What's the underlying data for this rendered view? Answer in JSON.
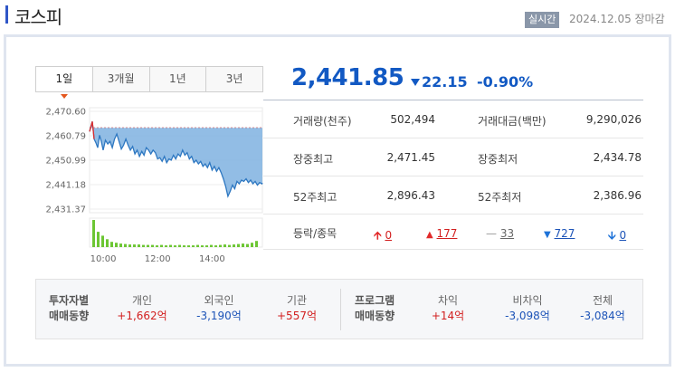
{
  "header": {
    "title": "코스피",
    "badge": "실시간",
    "datetime": "2024.12.05 장마감"
  },
  "tabs": [
    {
      "label": "1일",
      "selected": true
    },
    {
      "label": "3개월",
      "selected": false
    },
    {
      "label": "1년",
      "selected": false
    },
    {
      "label": "3년",
      "selected": false
    }
  ],
  "price": {
    "current": "2,441.85",
    "change": "22.15",
    "change_rate": "-0.90%",
    "direction": "down",
    "color": "#1259c3"
  },
  "stats": {
    "volume_label": "거래량(천주)",
    "volume_value": "502,494",
    "amount_label": "거래대금(백만)",
    "amount_value": "9,290,026",
    "high_label": "장중최고",
    "high_value": "2,471.45",
    "low_label": "장중최저",
    "low_value": "2,434.78",
    "high52_label": "52주최고",
    "high52_value": "2,896.43",
    "low52_label": "52주최저",
    "low52_value": "2,386.96",
    "breadth_label": "등락/종목",
    "upper_limit": "0",
    "rise": "177",
    "unchanged": "33",
    "fall": "727",
    "lower_limit": "0"
  },
  "investor": {
    "group1_line1": "투자자별",
    "group1_line2": "매매동향",
    "individual_label": "개인",
    "individual_value": "+1,662억",
    "foreign_label": "외국인",
    "foreign_value": "-3,190억",
    "institution_label": "기관",
    "institution_value": "+557억",
    "group2_line1": "프로그램",
    "group2_line2": "매매동향",
    "arbitrage_label": "차익",
    "arbitrage_value": "+14억",
    "nonarbitrage_label": "비차익",
    "nonarbitrage_value": "-3,098억",
    "total_label": "전체",
    "total_value": "-3,084억"
  },
  "chart_data": {
    "type": "area",
    "title": "",
    "ylabel": "",
    "xlabel": "",
    "y_ticks": [
      "2,470.60",
      "2,460.79",
      "2,450.99",
      "2,441.18",
      "2,431.37"
    ],
    "x_ticks": [
      "10:00",
      "12:00",
      "14:00"
    ],
    "ylim": [
      2431.37,
      2470.6
    ],
    "prev_close": 2464.0,
    "time_minutes": [
      0,
      3,
      6,
      10,
      14,
      18,
      22,
      26,
      30,
      35,
      40,
      45,
      50,
      55,
      60,
      65,
      70,
      75,
      80,
      85,
      90,
      95,
      100,
      105,
      110,
      115,
      120,
      125,
      130,
      135,
      140,
      145,
      150,
      155,
      160,
      165,
      170,
      175,
      180,
      185,
      190,
      195,
      200,
      205,
      210,
      215,
      220,
      225,
      230,
      235,
      240,
      245,
      250,
      255,
      260,
      265,
      270,
      275,
      280,
      285,
      290,
      295,
      300,
      305,
      310,
      315,
      320,
      325,
      330,
      335,
      340,
      345,
      350,
      355,
      360,
      365,
      370,
      375,
      380,
      381
    ],
    "index_values": [
      2462.5,
      2464.5,
      2466.5,
      2459.5,
      2458.0,
      2456.0,
      2461.0,
      2458.5,
      2455.0,
      2459.0,
      2457.5,
      2458.5,
      2456.0,
      2459.5,
      2461.5,
      2458.5,
      2455.5,
      2457.0,
      2459.5,
      2457.0,
      2455.0,
      2456.5,
      2453.5,
      2455.0,
      2452.5,
      2454.5,
      2453.0,
      2456.0,
      2455.0,
      2453.5,
      2455.0,
      2454.0,
      2451.5,
      2452.0,
      2450.5,
      2452.5,
      2450.0,
      2451.5,
      2451.0,
      2453.0,
      2451.5,
      2453.5,
      2452.5,
      2455.0,
      2453.0,
      2454.0,
      2451.5,
      2452.5,
      2450.0,
      2451.0,
      2449.5,
      2450.5,
      2448.5,
      2449.5,
      2448.0,
      2450.0,
      2447.0,
      2448.5,
      2446.5,
      2448.0,
      2446.0,
      2443.5,
      2440.5,
      2436.5,
      2438.5,
      2441.0,
      2439.5,
      2442.5,
      2441.5,
      2443.0,
      2442.5,
      2443.5,
      2442.0,
      2443.0,
      2441.5,
      2442.5,
      2441.0,
      2442.0,
      2441.5,
      2441.85
    ],
    "volume_bars": [
      62,
      35,
      26,
      18,
      12,
      10,
      8,
      7,
      6,
      6,
      6,
      5,
      5,
      5,
      4,
      5,
      4,
      5,
      4,
      5,
      4,
      4,
      4,
      5,
      4,
      4,
      5,
      4,
      5,
      6,
      5,
      6,
      7,
      8,
      7,
      10,
      14
    ],
    "colors": {
      "line": "#2d77c1",
      "fill": "#7fb2e0",
      "volume": "#6cc633",
      "up": "#e02b2b"
    }
  }
}
